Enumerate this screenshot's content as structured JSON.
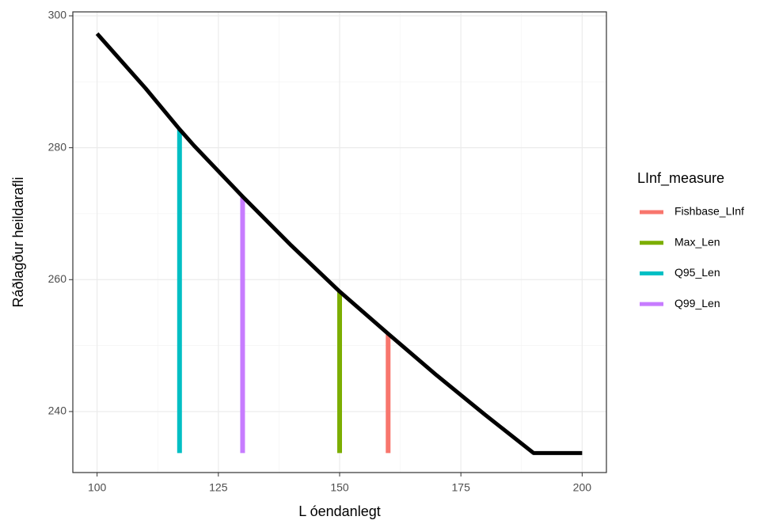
{
  "chart_data": {
    "type": "line_segments",
    "x_label": "L óendanlegt",
    "y_label": "Ráðlagður heildarafli",
    "x": [
      100,
      110,
      117,
      120,
      130,
      140,
      150,
      160,
      170,
      180,
      190,
      200
    ],
    "values": [
      297.3,
      289.0,
      282.8,
      280.3,
      272.6,
      265.2,
      258.2,
      251.8,
      245.5,
      239.5,
      233.7,
      233.7
    ],
    "color": "#000000",
    "legend_title": "LInf_measure",
    "series": [
      {
        "name": "Fishbase_LInf",
        "color": "#F8766D",
        "x": [
          160
        ],
        "values": [
          251.8
        ],
        "ymin": [
          233.7
        ]
      },
      {
        "name": "Max_Len",
        "color": "#7CAE00",
        "x": [
          150
        ],
        "values": [
          258.2
        ],
        "ymin": [
          233.7
        ]
      },
      {
        "name": "Q95_Len",
        "color": "#00BFC4",
        "x": [
          117
        ],
        "values": [
          282.8
        ],
        "ymin": [
          233.7
        ]
      },
      {
        "name": "Q99_Len",
        "color": "#C77CFF",
        "x": [
          130
        ],
        "values": [
          272.6
        ],
        "ymin": [
          233.7
        ]
      }
    ],
    "xlim": [
      95,
      205
    ],
    "ylim": [
      230.75,
      300.6
    ],
    "xticks": [
      100,
      125,
      150,
      175,
      200
    ],
    "yticks": [
      240,
      260,
      280,
      300
    ],
    "minor_xticks": [
      112.5,
      137.5,
      162.5,
      187.5
    ],
    "minor_yticks": [
      250,
      270,
      290
    ],
    "grid": true,
    "legend": "right"
  }
}
